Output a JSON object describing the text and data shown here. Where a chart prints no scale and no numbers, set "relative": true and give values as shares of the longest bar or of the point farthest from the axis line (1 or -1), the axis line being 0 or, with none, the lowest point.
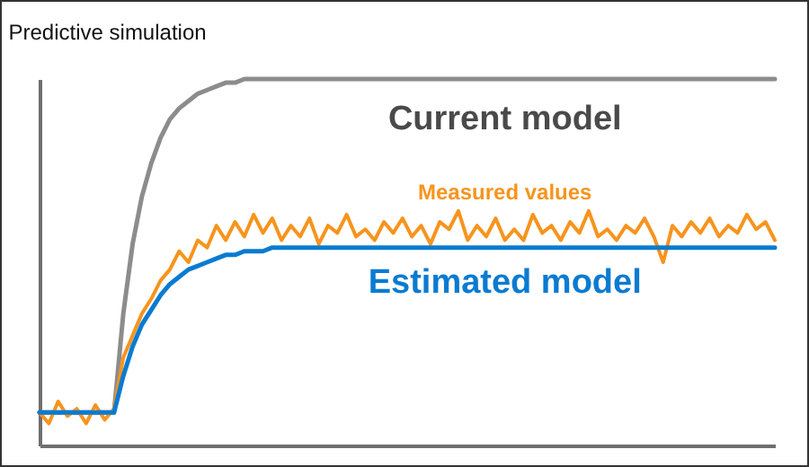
{
  "chart_data": {
    "type": "line",
    "title": "Predictive simulation",
    "relative": true,
    "categories": [
      null,
      null,
      null,
      null,
      null,
      null,
      null,
      null,
      null,
      null,
      null,
      null,
      null,
      null,
      null,
      null,
      null,
      null,
      null,
      null,
      null,
      null,
      null,
      null,
      null,
      null,
      null,
      null,
      null,
      null,
      null,
      null,
      null,
      null,
      null,
      null,
      null,
      null,
      null,
      null,
      null,
      null,
      null,
      null,
      null,
      null,
      null,
      null,
      null,
      null,
      null,
      null,
      null,
      null,
      null,
      null,
      null,
      null,
      null,
      null,
      null,
      null,
      null,
      null,
      null,
      null,
      null,
      null,
      null,
      null,
      null,
      null,
      null,
      null,
      null,
      null,
      null,
      null,
      null,
      null
    ],
    "series": [
      {
        "name": "Current model",
        "color": "#8c8c8c",
        "values": [
          0.09,
          0.09,
          0.09,
          0.09,
          0.09,
          0.09,
          0.09,
          0.09,
          0.09,
          0.36,
          0.55,
          0.68,
          0.77,
          0.84,
          0.89,
          0.92,
          0.94,
          0.96,
          0.97,
          0.98,
          0.99,
          0.99,
          1,
          1,
          1,
          1,
          1,
          1,
          1,
          1,
          1,
          1,
          1,
          1,
          1,
          1,
          1,
          1,
          1,
          1,
          1,
          1,
          1,
          1,
          1,
          1,
          1,
          1,
          1,
          1,
          1,
          1,
          1,
          1,
          1,
          1,
          1,
          1,
          1,
          1,
          1,
          1,
          1,
          1,
          1,
          1,
          1,
          1,
          1,
          1,
          1,
          1,
          1,
          1,
          1,
          1,
          1,
          1,
          1,
          1
        ]
      },
      {
        "name": "Measured values",
        "color": "#f7941d",
        "values": [
          0.09,
          0.06,
          0.12,
          0.08,
          0.1,
          0.06,
          0.11,
          0.07,
          0.1,
          0.24,
          0.3,
          0.36,
          0.4,
          0.45,
          0.48,
          0.53,
          0.5,
          0.56,
          0.54,
          0.6,
          0.56,
          0.61,
          0.57,
          0.63,
          0.58,
          0.62,
          0.56,
          0.6,
          0.57,
          0.62,
          0.55,
          0.6,
          0.58,
          0.63,
          0.57,
          0.59,
          0.56,
          0.61,
          0.58,
          0.62,
          0.57,
          0.6,
          0.55,
          0.61,
          0.59,
          0.64,
          0.56,
          0.6,
          0.57,
          0.62,
          0.56,
          0.59,
          0.56,
          0.63,
          0.58,
          0.6,
          0.56,
          0.61,
          0.58,
          0.64,
          0.57,
          0.59,
          0.56,
          0.6,
          0.58,
          0.62,
          0.57,
          0.5,
          0.6,
          0.57,
          0.61,
          0.58,
          0.62,
          0.57,
          0.6,
          0.58,
          0.63,
          0.59,
          0.61,
          0.56
        ]
      },
      {
        "name": "Estimated model",
        "color": "#0a7bd1",
        "values": [
          0.09,
          0.09,
          0.09,
          0.09,
          0.09,
          0.09,
          0.09,
          0.09,
          0.09,
          0.19,
          0.27,
          0.33,
          0.37,
          0.41,
          0.44,
          0.46,
          0.48,
          0.49,
          0.5,
          0.51,
          0.52,
          0.52,
          0.53,
          0.53,
          0.53,
          0.54,
          0.54,
          0.54,
          0.54,
          0.54,
          0.54,
          0.54,
          0.54,
          0.54,
          0.54,
          0.54,
          0.54,
          0.54,
          0.54,
          0.54,
          0.54,
          0.54,
          0.54,
          0.54,
          0.54,
          0.54,
          0.54,
          0.54,
          0.54,
          0.54,
          0.54,
          0.54,
          0.54,
          0.54,
          0.54,
          0.54,
          0.54,
          0.54,
          0.54,
          0.54,
          0.54,
          0.54,
          0.54,
          0.54,
          0.54,
          0.54,
          0.54,
          0.54,
          0.54,
          0.54,
          0.54,
          0.54,
          0.54,
          0.54,
          0.54,
          0.54,
          0.54,
          0.54,
          0.54,
          0.54
        ]
      }
    ]
  }
}
